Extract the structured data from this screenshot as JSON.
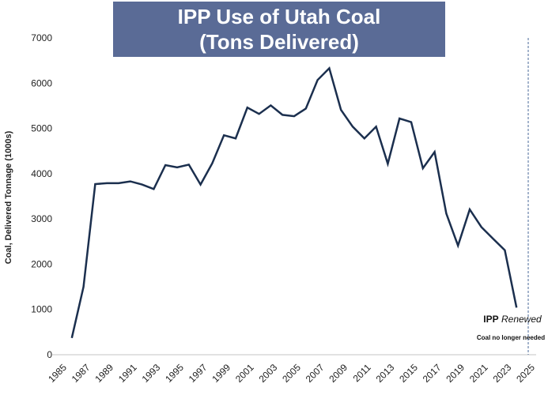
{
  "chart_data": {
    "type": "line",
    "title_line1": "IPP Use of Utah Coal",
    "title_line2": "(Tons Delivered)",
    "xlabel": "",
    "ylabel": "Coal, Delivered Tonnage (1000s)",
    "xlim": [
      1985,
      2025
    ],
    "ylim": [
      0,
      7000
    ],
    "x_ticks": [
      1985,
      1987,
      1989,
      1991,
      1993,
      1995,
      1997,
      1999,
      2001,
      2003,
      2005,
      2007,
      2009,
      2011,
      2013,
      2015,
      2017,
      2019,
      2021,
      2023,
      2025
    ],
    "y_ticks": [
      0,
      1000,
      2000,
      3000,
      4000,
      5000,
      6000,
      7000
    ],
    "grid": false,
    "line_color": "#1b2f4e",
    "title_bg_color": "#5a6b96",
    "x": [
      1986,
      1987,
      1988,
      1989,
      1990,
      1991,
      1992,
      1993,
      1994,
      1995,
      1996,
      1997,
      1998,
      1999,
      2000,
      2001,
      2002,
      2003,
      2004,
      2005,
      2006,
      2007,
      2008,
      2009,
      2010,
      2011,
      2012,
      2013,
      2014,
      2015,
      2016,
      2017,
      2018,
      2019,
      2020,
      2021,
      2022,
      2023,
      2024
    ],
    "values": [
      370,
      1500,
      3770,
      3790,
      3790,
      3830,
      3760,
      3660,
      4190,
      4140,
      4200,
      3760,
      4230,
      4850,
      4780,
      5460,
      5320,
      5510,
      5300,
      5270,
      5440,
      6070,
      6330,
      5410,
      5040,
      4780,
      5040,
      4220,
      5220,
      5140,
      4120,
      4480,
      3120,
      2410,
      3210,
      2820,
      2560,
      2310,
      1040
    ],
    "marker_line_x": 2025,
    "annotation_title_bold": "IPP",
    "annotation_title_italic": "Renewed",
    "annotation_subtitle": "Coal no longer needed"
  }
}
